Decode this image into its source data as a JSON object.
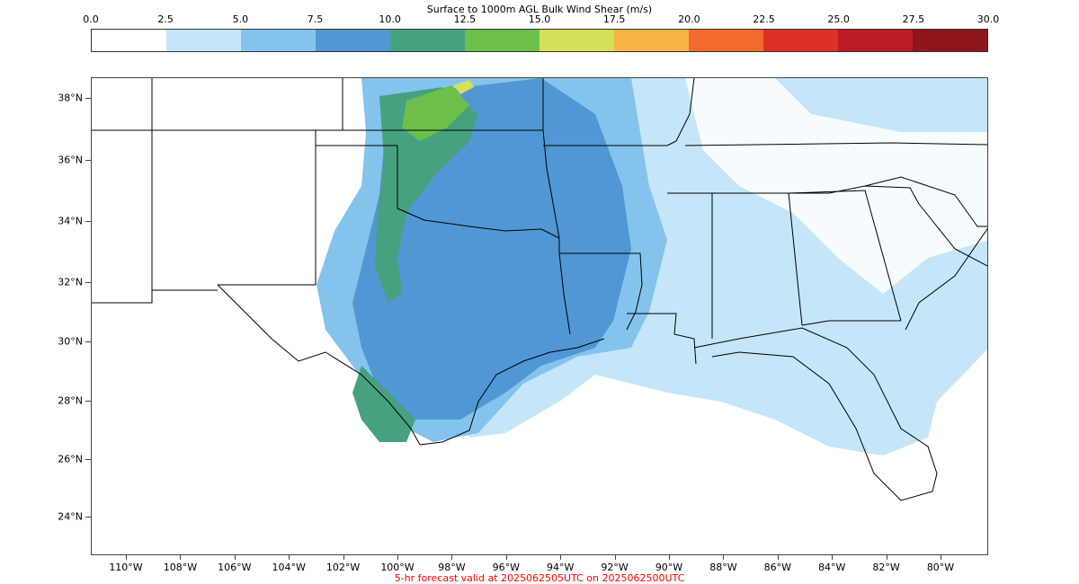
{
  "colorbar": {
    "title": "Surface to 1000m AGL Bulk Wind Shear (m/s)",
    "ticks": [
      "0.0",
      "2.5",
      "5.0",
      "7.5",
      "10.0",
      "12.5",
      "15.0",
      "17.5",
      "20.0",
      "22.5",
      "25.0",
      "27.5",
      "30.0"
    ],
    "colors": [
      "#ffffff",
      "#c4e6f8",
      "#84c4ec",
      "#5097d3",
      "#46a17e",
      "#6cc04a",
      "#d5e05a",
      "#f7b445",
      "#f26a2d",
      "#dd3127",
      "#bb1b23",
      "#8f141b"
    ]
  },
  "map": {
    "lat_labels": [
      "38°N",
      "36°N",
      "34°N",
      "32°N",
      "30°N",
      "28°N",
      "26°N",
      "24°N"
    ],
    "lon_labels": [
      "110°W",
      "108°W",
      "106°W",
      "104°W",
      "102°W",
      "100°W",
      "98°W",
      "96°W",
      "94°W",
      "92°W",
      "90°W",
      "88°W",
      "86°W",
      "84°W",
      "82°W",
      "80°W"
    ]
  },
  "footer": "5-hr forecast valid at 2025062505UTC on 2025062500UTC"
}
